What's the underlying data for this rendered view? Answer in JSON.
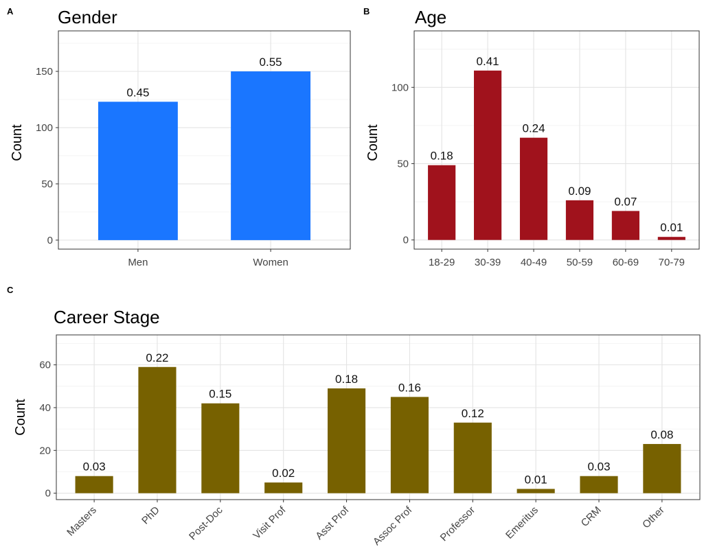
{
  "panels": [
    {
      "id": "A",
      "letter": "A",
      "title": "Gender",
      "ylabel": "Count",
      "color": "#1a76ff",
      "chart_index": 0
    },
    {
      "id": "B",
      "letter": "B",
      "title": "Age",
      "ylabel": "Count",
      "color": "#a0121c",
      "chart_index": 1
    },
    {
      "id": "C",
      "letter": "C",
      "title": "Career Stage",
      "ylabel": "Count",
      "color": "#776100",
      "chart_index": 2
    }
  ],
  "chart_data": [
    {
      "type": "bar",
      "title": "Gender",
      "xlabel": "",
      "ylabel": "Count",
      "categories": [
        "Men",
        "Women"
      ],
      "values": [
        123,
        150
      ],
      "data_labels": [
        "0.45",
        "0.55"
      ],
      "ylim": [
        -8,
        186
      ],
      "yticks": [
        0,
        50,
        100,
        150
      ],
      "ytick_labels": [
        "0",
        "50",
        "100",
        "150"
      ],
      "grid": true,
      "color": "#1a76ff"
    },
    {
      "type": "bar",
      "title": "Age",
      "xlabel": "",
      "ylabel": "Count",
      "categories": [
        "18-29",
        "30-39",
        "40-49",
        "50-59",
        "60-69",
        "70-79"
      ],
      "values": [
        49,
        111,
        67,
        26,
        19,
        2
      ],
      "data_labels": [
        "0.18",
        "0.41",
        "0.24",
        "0.09",
        "0.07",
        "0.01"
      ],
      "ylim": [
        -6,
        137
      ],
      "yticks": [
        0,
        50,
        100
      ],
      "ytick_labels": [
        "0",
        "50",
        "100"
      ],
      "grid": true,
      "color": "#a0121c"
    },
    {
      "type": "bar",
      "title": "Career Stage",
      "xlabel": "",
      "ylabel": "Count",
      "categories": [
        "Masters",
        "PhD",
        "Post-Doc",
        "Visit Prof",
        "Asst Prof",
        "Assoc Prof",
        "Professor",
        "Emeritus",
        "CRM",
        "Other"
      ],
      "values": [
        8,
        59,
        42,
        5,
        49,
        45,
        33,
        2,
        8,
        23
      ],
      "data_labels": [
        "0.03",
        "0.22",
        "0.15",
        "0.02",
        "0.18",
        "0.16",
        "0.12",
        "0.01",
        "0.03",
        "0.08"
      ],
      "ylim": [
        -3,
        74
      ],
      "yticks": [
        0,
        20,
        40,
        60
      ],
      "ytick_labels": [
        "0",
        "20",
        "40",
        "60"
      ],
      "grid": true,
      "color": "#776100"
    }
  ]
}
